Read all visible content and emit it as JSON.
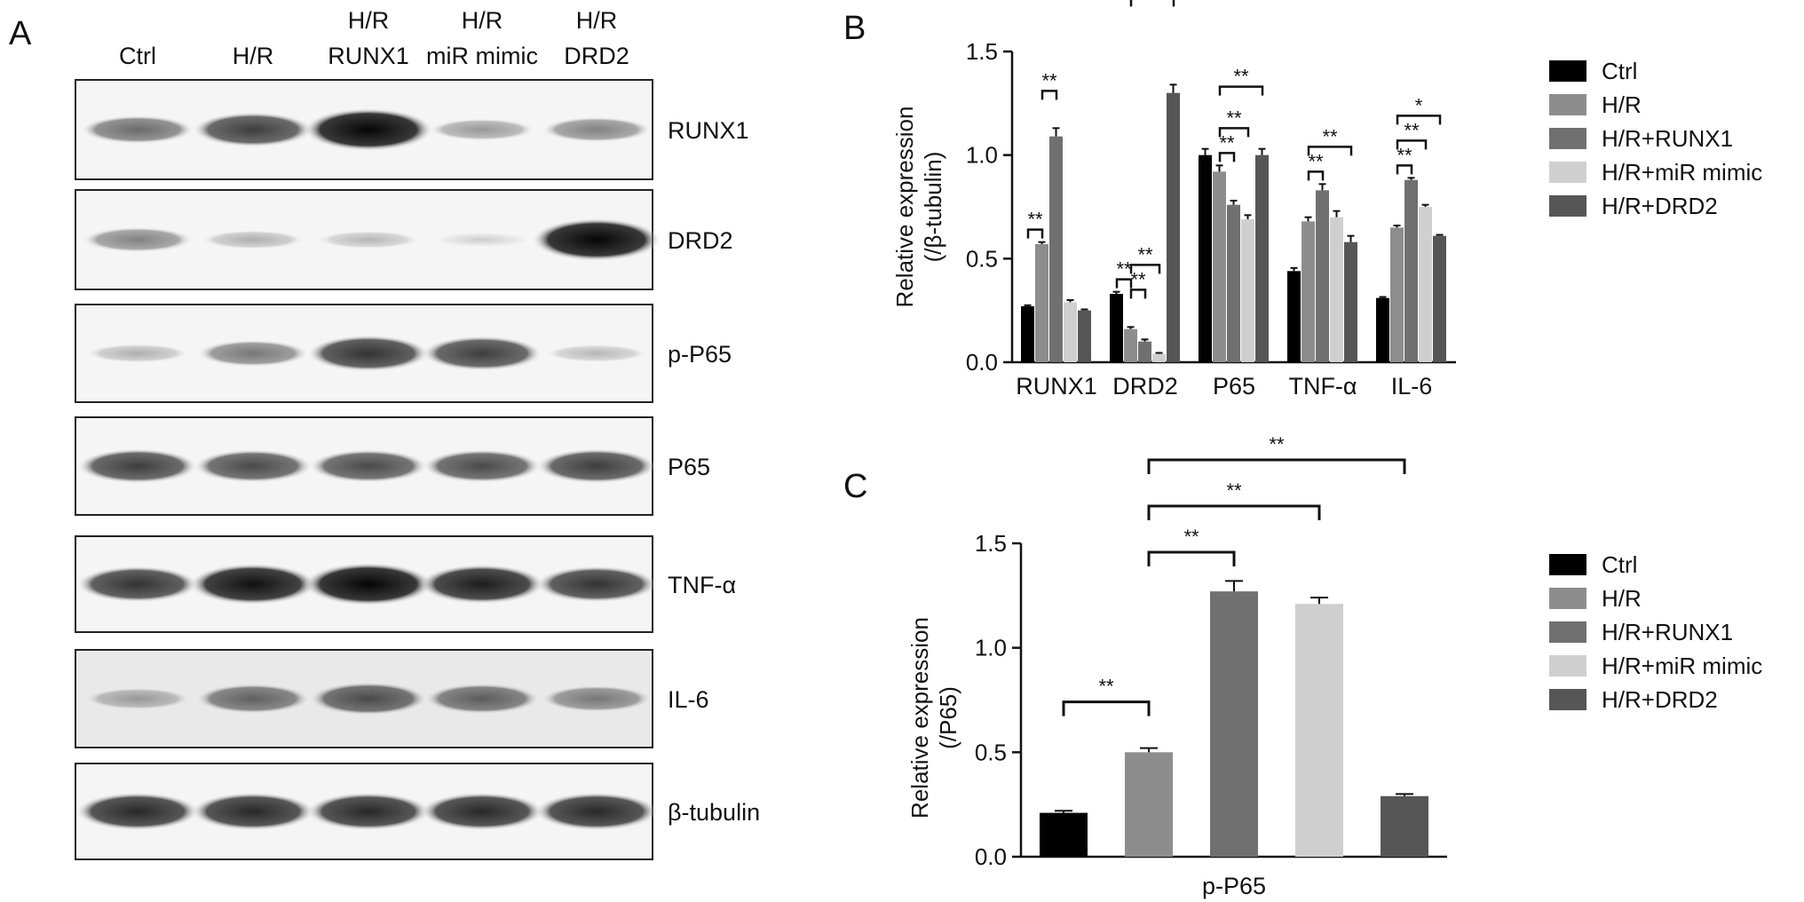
{
  "panel_labels": {
    "a": "A",
    "b": "B",
    "c": "C"
  },
  "blot": {
    "lanes": [
      {
        "top": "",
        "bottom": "Ctrl"
      },
      {
        "top": "",
        "bottom": "H/R"
      },
      {
        "top": "H/R",
        "bottom": "RUNX1"
      },
      {
        "top": "H/R",
        "bottom": "miR mimic"
      },
      {
        "top": "H/R",
        "bottom": "DRD2"
      }
    ],
    "bands": [
      {
        "label": "RUNX1",
        "relative_intensity": [
          0.55,
          0.75,
          1.0,
          0.35,
          0.45
        ]
      },
      {
        "label": "DRD2",
        "relative_intensity": [
          0.45,
          0.25,
          0.22,
          0.12,
          1.0
        ]
      },
      {
        "label": "p-P65",
        "relative_intensity": [
          0.25,
          0.5,
          0.8,
          0.75,
          0.22
        ]
      },
      {
        "label": "P65",
        "relative_intensity": [
          0.75,
          0.7,
          0.7,
          0.7,
          0.75
        ]
      },
      {
        "label": "TNF-α",
        "relative_intensity": [
          0.8,
          0.95,
          1.0,
          0.9,
          0.8
        ]
      },
      {
        "label": "IL-6",
        "relative_intensity": [
          0.35,
          0.6,
          0.7,
          0.62,
          0.5
        ]
      },
      {
        "label": "β-tubulin",
        "relative_intensity": [
          0.85,
          0.85,
          0.85,
          0.85,
          0.85
        ]
      }
    ]
  },
  "chart_data": [
    {
      "panel": "B",
      "type": "bar",
      "ylabel": "Relative expression",
      "ylabel2": "(/β-tubulin)",
      "ylim": [
        0,
        1.5
      ],
      "yticks": [
        "0.0",
        "0.5",
        "1.0",
        "1.5"
      ],
      "categories": [
        "RUNX1",
        "DRD2",
        "P65",
        "TNF-α",
        "IL-6"
      ],
      "series": [
        {
          "name": "Ctrl",
          "color": "#000000",
          "values": [
            0.27,
            0.33,
            1.0,
            0.44,
            0.31
          ],
          "errors": [
            0.005,
            0.01,
            0.03,
            0.015,
            0.005
          ]
        },
        {
          "name": "H/R",
          "color": "#8d8d8d",
          "values": [
            0.57,
            0.16,
            0.92,
            0.68,
            0.65
          ],
          "errors": [
            0.01,
            0.01,
            0.03,
            0.02,
            0.01
          ]
        },
        {
          "name": "H/R+RUNX1",
          "color": "#707070",
          "values": [
            1.09,
            0.1,
            0.76,
            0.83,
            0.88
          ],
          "errors": [
            0.04,
            0.01,
            0.02,
            0.03,
            0.01
          ]
        },
        {
          "name": "H/R+miR mimic",
          "color": "#cfcfcf",
          "values": [
            0.29,
            0.04,
            0.69,
            0.7,
            0.75
          ],
          "errors": [
            0.01,
            0.005,
            0.02,
            0.03,
            0.01
          ]
        },
        {
          "name": "H/R+DRD2",
          "color": "#565656",
          "values": [
            0.25,
            1.3,
            1.0,
            0.58,
            0.61
          ],
          "errors": [
            0.005,
            0.04,
            0.03,
            0.03,
            0.005
          ]
        }
      ],
      "significance": [
        {
          "cat": 0,
          "a": 0,
          "b": 1,
          "label": "**"
        },
        {
          "cat": 0,
          "a": 1,
          "b": 2,
          "label": "**"
        },
        {
          "cat": 1,
          "a": 0,
          "b": 1,
          "label": "**"
        },
        {
          "cat": 1,
          "a": 1,
          "b": 2,
          "label": "**"
        },
        {
          "cat": 1,
          "a": 1,
          "b": 3,
          "label": "**"
        },
        {
          "cat": 1,
          "a": 1,
          "b": 4,
          "label": "**"
        },
        {
          "cat": 2,
          "a": 1,
          "b": 2,
          "label": "**"
        },
        {
          "cat": 2,
          "a": 1,
          "b": 3,
          "label": "**"
        },
        {
          "cat": 2,
          "a": 1,
          "b": 4,
          "label": "**"
        },
        {
          "cat": 3,
          "a": 1,
          "b": 2,
          "label": "**"
        },
        {
          "cat": 3,
          "a": 1,
          "b": 4,
          "label": "**"
        },
        {
          "cat": 4,
          "a": 1,
          "b": 2,
          "label": "**"
        },
        {
          "cat": 4,
          "a": 1,
          "b": 3,
          "label": "**"
        },
        {
          "cat": 4,
          "a": 1,
          "b": 4,
          "label": "*"
        }
      ]
    },
    {
      "panel": "C",
      "type": "bar",
      "ylabel": "Relative expression",
      "ylabel2": "(/P65)",
      "xlabel": "p-P65",
      "ylim": [
        0,
        1.5
      ],
      "yticks": [
        "0.0",
        "0.5",
        "1.0",
        "1.5"
      ],
      "categories": [
        "Ctrl",
        "H/R",
        "H/R+RUNX1",
        "H/R+miR mimic",
        "H/R+DRD2"
      ],
      "colors": [
        "#000000",
        "#8d8d8d",
        "#707070",
        "#cfcfcf",
        "#565656"
      ],
      "values": [
        0.21,
        0.5,
        1.27,
        1.21,
        0.29
      ],
      "errors": [
        0.01,
        0.02,
        0.05,
        0.03,
        0.01
      ],
      "significance": [
        {
          "a": 0,
          "b": 1,
          "label": "**"
        },
        {
          "a": 1,
          "b": 2,
          "label": "**"
        },
        {
          "a": 1,
          "b": 3,
          "label": "**"
        },
        {
          "a": 1,
          "b": 4,
          "label": "**"
        }
      ]
    }
  ],
  "legend": [
    {
      "label": "Ctrl",
      "color": "#000000"
    },
    {
      "label": "H/R",
      "color": "#8d8d8d"
    },
    {
      "label": "H/R+RUNX1",
      "color": "#707070"
    },
    {
      "label": "H/R+miR mimic",
      "color": "#cfcfcf"
    },
    {
      "label": "H/R+DRD2",
      "color": "#565656"
    }
  ]
}
